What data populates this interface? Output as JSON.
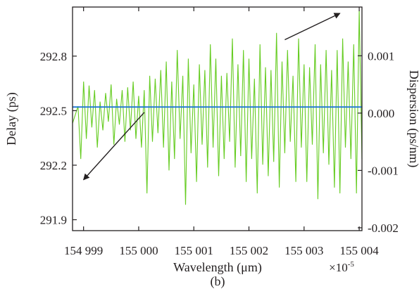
{
  "chart_data": {
    "type": "line",
    "xlabel": "Wavelength (μm)",
    "x_multiplier_label": "×10",
    "x_multiplier_exp": "-5",
    "panel_label": "(b)",
    "xlim": [
      154998.8,
      155004.05
    ],
    "x_ticks": [
      154999,
      155000,
      155001,
      155002,
      155003,
      155004
    ],
    "x_tick_labels": [
      "154 999",
      "155 000",
      "155 001",
      "155 002",
      "155 003",
      "155 004"
    ],
    "y_left": {
      "label": "Delay (ps)",
      "lim": [
        291.84,
        293.07
      ],
      "ticks": [
        291.9,
        292.2,
        292.5,
        292.8
      ],
      "tick_labels": [
        "291.9",
        "292.2",
        "292.5",
        "292.8"
      ]
    },
    "y_right": {
      "label": "Dispersion (ps/nm)",
      "lim": [
        -0.00205,
        0.00185
      ],
      "ticks": [
        -0.002,
        -0.001,
        0.0,
        0.001
      ],
      "tick_labels": [
        "-0.002",
        "-0.001",
        "0.000",
        "0.001"
      ]
    },
    "series": [
      {
        "axis": "left",
        "color": "#1f77d4",
        "x": [
          154998.8,
          155004.05
        ],
        "y": [
          292.52,
          292.52
        ]
      },
      {
        "axis": "right",
        "color": "#66cc22",
        "x": [
          154998.8,
          154998.9,
          154998.95,
          154999.0,
          154999.05,
          154999.1,
          154999.15,
          154999.2,
          154999.25,
          154999.3,
          154999.35,
          154999.4,
          154999.45,
          154999.5,
          154999.55,
          154999.6,
          154999.65,
          154999.7,
          154999.75,
          154999.8,
          154999.85,
          154999.9,
          154999.95,
          155000.0,
          155000.05,
          155000.1,
          155000.15,
          155000.2,
          155000.25,
          155000.3,
          155000.35,
          155000.4,
          155000.45,
          155000.5,
          155000.55,
          155000.6,
          155000.65,
          155000.7,
          155000.75,
          155000.8,
          155000.85,
          155000.9,
          155000.95,
          155001.0,
          155001.05,
          155001.1,
          155001.15,
          155001.2,
          155001.25,
          155001.3,
          155001.35,
          155001.4,
          155001.45,
          155001.5,
          155001.55,
          155001.6,
          155001.65,
          155001.7,
          155001.75,
          155001.8,
          155001.85,
          155001.9,
          155001.95,
          155002.0,
          155002.05,
          155002.1,
          155002.15,
          155002.2,
          155002.25,
          155002.3,
          155002.35,
          155002.4,
          155002.45,
          155002.5,
          155002.55,
          155002.6,
          155002.65,
          155002.7,
          155002.75,
          155002.8,
          155002.85,
          155002.9,
          155002.95,
          155003.0,
          155003.05,
          155003.1,
          155003.15,
          155003.2,
          155003.25,
          155003.3,
          155003.35,
          155003.4,
          155003.45,
          155003.5,
          155003.55,
          155003.6,
          155003.65,
          155003.7,
          155003.75,
          155003.8,
          155003.85,
          155003.9,
          155003.95,
          155004.0,
          155004.05
        ],
        "y": [
          -0.00018,
          0.00012,
          -0.0008,
          0.00055,
          -0.00045,
          0.00048,
          -0.00025,
          0.0004,
          -0.0006,
          0.0002,
          -0.0003,
          0.00035,
          -0.00015,
          0.0005,
          -0.00055,
          0.00025,
          -0.0002,
          0.0004,
          -0.0005,
          0.00045,
          -0.0003,
          0.00055,
          -0.00045,
          0.0003,
          -0.0006,
          0.0004,
          -0.0014,
          0.00065,
          -0.0005,
          0.0006,
          -0.00035,
          0.00075,
          -0.0006,
          0.0009,
          -0.001,
          0.00055,
          -0.0008,
          0.0011,
          -0.00045,
          0.00065,
          -0.0016,
          0.00095,
          -0.0007,
          0.0005,
          -0.0012,
          0.00085,
          -0.00055,
          0.00075,
          -0.00095,
          0.0012,
          -0.0006,
          0.00095,
          -0.0011,
          0.00065,
          -0.0008,
          0.0007,
          -0.0005,
          0.0013,
          -0.00095,
          0.00085,
          -0.00075,
          0.0011,
          -0.0012,
          0.00095,
          -0.0008,
          0.0006,
          -0.0014,
          0.0012,
          -0.0009,
          0.0008,
          -0.0011,
          0.00075,
          -0.00085,
          0.0014,
          -0.0013,
          0.0009,
          -0.0007,
          0.0011,
          -0.0005,
          0.00065,
          -0.0012,
          0.0013,
          -0.0006,
          0.00085,
          -0.0012,
          0.0008,
          -0.00055,
          0.0012,
          -0.0015,
          0.00085,
          -0.0007,
          0.0011,
          -0.0009,
          0.00075,
          -0.0013,
          0.0011,
          -0.0014,
          0.0013,
          -0.0006,
          0.0009,
          -0.0008,
          0.0012,
          -0.0014,
          0.0018,
          -0.0008
        ]
      }
    ],
    "annotations": [
      {
        "kind": "arrow",
        "from": [
          155000.1,
          292.49
        ],
        "to": [
          154999.0,
          292.12
        ],
        "axis": "left"
      },
      {
        "kind": "arrow",
        "from": [
          155002.65,
          0.00128
        ],
        "to": [
          155003.65,
          0.00174
        ],
        "axis": "right"
      }
    ],
    "grid": false,
    "legend": "none"
  }
}
